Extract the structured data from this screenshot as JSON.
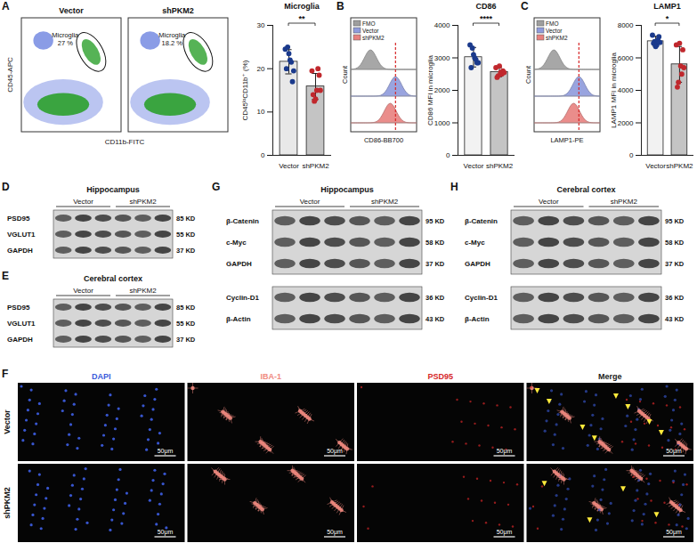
{
  "chart_data": [
    {
      "type": "bar",
      "panel": "A",
      "title": "Microglia",
      "ylabel": "CD45ˡᵒCD11b⁺ (%)",
      "categories": [
        "Vector",
        "shPKM2"
      ],
      "values": [
        21.6,
        15.9
      ],
      "errors": [
        2.8,
        3.0
      ],
      "colors": [
        "#e8e8e8",
        "#c4c4c4"
      ],
      "points": [
        [
          24.5,
          25.0,
          22.0,
          17.0,
          20.0,
          23.5,
          21.5,
          19.5
        ],
        [
          19.5,
          12.5,
          15.0,
          18.5,
          14.0,
          13.0,
          20.0,
          15.0
        ]
      ],
      "point_colors": [
        "#1b3a8c",
        "#c0282d"
      ],
      "significance": "**",
      "ylim": [
        0,
        30
      ],
      "yticks": [
        0,
        10,
        20,
        30
      ]
    },
    {
      "type": "bar",
      "panel": "B",
      "title": "CD86",
      "ylabel": "CD86 MFI in microglia",
      "categories": [
        "Vector",
        "shPKM2"
      ],
      "values": [
        3020,
        2560
      ],
      "errors": [
        300,
        140
      ],
      "colors": [
        "#f2f2f2",
        "#c4c4c4"
      ],
      "points": [
        [
          3400,
          3300,
          3000,
          2850,
          2700,
          3100,
          2950,
          2850
        ],
        [
          2700,
          2450,
          2550,
          2600,
          2400,
          2750,
          2500,
          2550
        ]
      ],
      "point_colors": [
        "#1b3a8c",
        "#c0282d"
      ],
      "significance": "****",
      "ylim": [
        0,
        4000
      ],
      "yticks": [
        0,
        1000,
        2000,
        3000,
        4000
      ]
    },
    {
      "type": "bar",
      "panel": "C",
      "title": "LAMP1",
      "ylabel": "LAMP1 MFI in microglia",
      "categories": [
        "Vector",
        "shPKM2"
      ],
      "values": [
        7020,
        5600
      ],
      "errors": [
        300,
        1100
      ],
      "colors": [
        "#f2f2f2",
        "#c4c4c4"
      ],
      "points": [
        [
          7400,
          7000,
          6800,
          7300,
          6900,
          6700,
          7100,
          6950
        ],
        [
          6800,
          4500,
          5500,
          6500,
          4200,
          6900,
          5000,
          5400
        ]
      ],
      "point_colors": [
        "#1b3a8c",
        "#c0282d"
      ],
      "significance": "*",
      "ylim": [
        0,
        8000
      ],
      "yticks": [
        0,
        2000,
        4000,
        6000,
        8000
      ]
    }
  ],
  "flow": {
    "x_label": "CD11b-FITC",
    "y_label": "CD45-APC",
    "plots": [
      {
        "title": "Vector",
        "gate": "Microglia",
        "percent": "27 %"
      },
      {
        "title": "shPKM2",
        "gate": "Microglia",
        "percent": "18.2 %"
      }
    ]
  },
  "histograms": [
    {
      "x_label": "CD86-BB700",
      "y_label": "Count",
      "legend": [
        {
          "name": "FMO",
          "color": "#9e9e9e"
        },
        {
          "name": "Vector",
          "color": "#8f9bdc"
        },
        {
          "name": "shPKM2",
          "color": "#e8817f"
        }
      ]
    },
    {
      "x_label": "LAMP1-PE",
      "y_label": "Count",
      "legend": [
        {
          "name": "FMO",
          "color": "#9e9e9e"
        },
        {
          "name": "Vector",
          "color": "#8f9bdc"
        },
        {
          "name": "shPKM2",
          "color": "#e8817f"
        }
      ]
    }
  ],
  "blots": [
    {
      "panel": "D",
      "title": "Hippocampus",
      "groups": [
        "Vector",
        "shPKM2"
      ],
      "blocks": [
        [
          {
            "name": "PSD95",
            "size": "85 KD"
          },
          {
            "name": "VGLUT1",
            "size": "55 KD"
          },
          {
            "name": "GAPDH",
            "size": "37 KD"
          }
        ]
      ]
    },
    {
      "panel": "E",
      "title": "Cerebral cortex",
      "groups": [
        "Vector",
        "shPKM2"
      ],
      "blocks": [
        [
          {
            "name": "PSD95",
            "size": "85 KD"
          },
          {
            "name": "VGLUT1",
            "size": "55 KD"
          },
          {
            "name": "GAPDH",
            "size": "37 KD"
          }
        ]
      ]
    },
    {
      "panel": "G",
      "title": "Hippocampus",
      "groups": [
        "Vector",
        "shPKM2"
      ],
      "blocks": [
        [
          {
            "name": "β-Catenin",
            "size": "95 KD"
          },
          {
            "name": "c-Myc",
            "size": "58 KD"
          },
          {
            "name": "GAPDH",
            "size": "37 KD"
          }
        ],
        [
          {
            "name": "Cyclin-D1",
            "size": "36 KD"
          },
          {
            "name": "β-Actin",
            "size": "43 KD"
          }
        ]
      ]
    },
    {
      "panel": "H",
      "title": "Cerebral cortex",
      "groups": [
        "Vector",
        "shPKM2"
      ],
      "blocks": [
        [
          {
            "name": "β-Catenin",
            "size": "95 KD"
          },
          {
            "name": "c-Myc",
            "size": "58 KD"
          },
          {
            "name": "GAPDH",
            "size": "37 KD"
          }
        ],
        [
          {
            "name": "Cyclin-D1",
            "size": "36 KD"
          },
          {
            "name": "β-Actin",
            "size": "43 KD"
          }
        ]
      ]
    }
  ],
  "microscopy": {
    "panel": "F",
    "columns": [
      "DAPI",
      "IBA-1",
      "PSD95",
      "Merge"
    ],
    "column_colors": [
      "#3b5bdb",
      "#f08a80",
      "#d62728",
      "#222222"
    ],
    "rows": [
      "Vector",
      "shPKM2"
    ],
    "scale_bar": "50μm"
  }
}
